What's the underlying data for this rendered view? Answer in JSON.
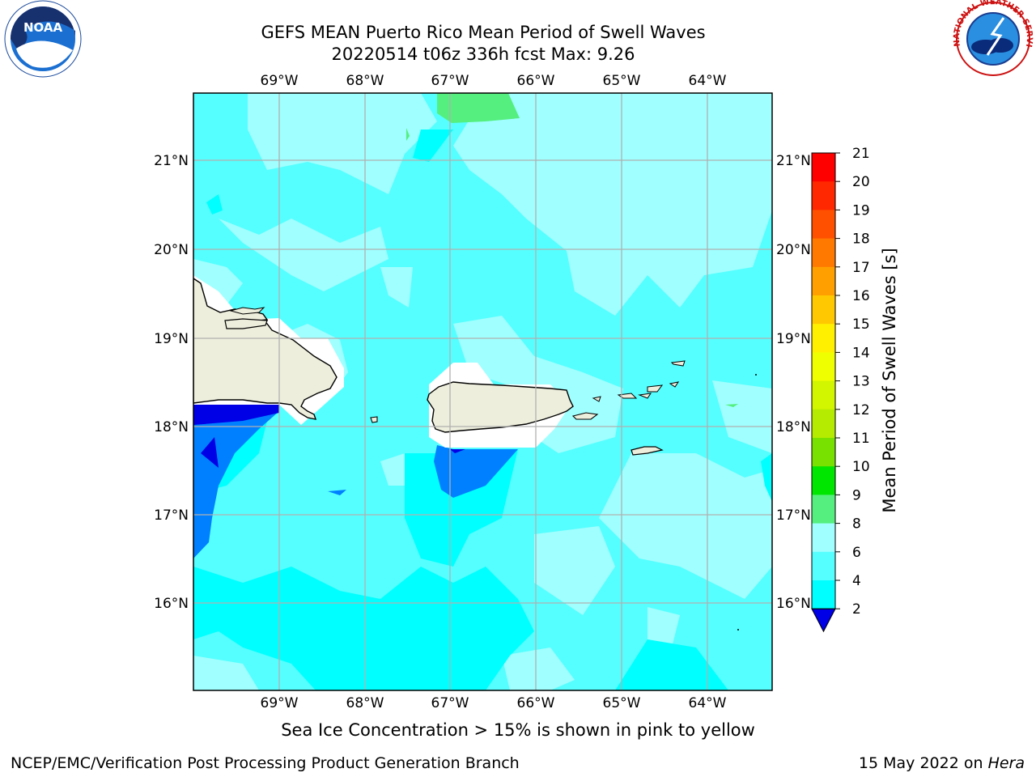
{
  "header": {
    "title_line1": "GEFS MEAN Puerto Rico Mean Period of Swell Waves",
    "title_line2": "20220514 t06z 336h fcst   Max: 9.26"
  },
  "logos": {
    "left": "noaa-logo",
    "left_text": "NOAA",
    "right": "national-weather-service-logo",
    "right_text": "NATIONAL WEATHER SERVICE"
  },
  "map": {
    "lon_labels": [
      "69°W",
      "68°W",
      "67°W",
      "66°W",
      "65°W",
      "64°W"
    ],
    "lat_labels": [
      "21°N",
      "20°N",
      "19°N",
      "18°N",
      "17°N",
      "16°N"
    ],
    "land_color": "#eeeedd",
    "grid_color": "#b0b0b0"
  },
  "colorbar": {
    "label": "Mean Period of Swell Waves [s]",
    "ticks": [
      "21",
      "20",
      "19",
      "18",
      "17",
      "16",
      "15",
      "14",
      "13",
      "12",
      "11",
      "10",
      "9",
      "8",
      "6",
      "4",
      "2"
    ],
    "colors": [
      "#ff0000",
      "#ff2800",
      "#ff5000",
      "#ff7800",
      "#ffa000",
      "#ffc800",
      "#fff000",
      "#f0ff00",
      "#d2f500",
      "#b4eb00",
      "#78e100",
      "#00e600",
      "#00dc32",
      "#55ef7f",
      "#a0ffff",
      "#55ffff",
      "#00ffff",
      "#0080ff",
      "#0000e6"
    ],
    "under_color": "#0000e6"
  },
  "footer": {
    "ice_note": "Sea Ice Concentration > 15% is shown in pink to yellow",
    "left": "NCEP/EMC/Verification Post Processing Product Generation Branch",
    "right_date": "15 May 2022 on ",
    "right_host": "Hera"
  }
}
